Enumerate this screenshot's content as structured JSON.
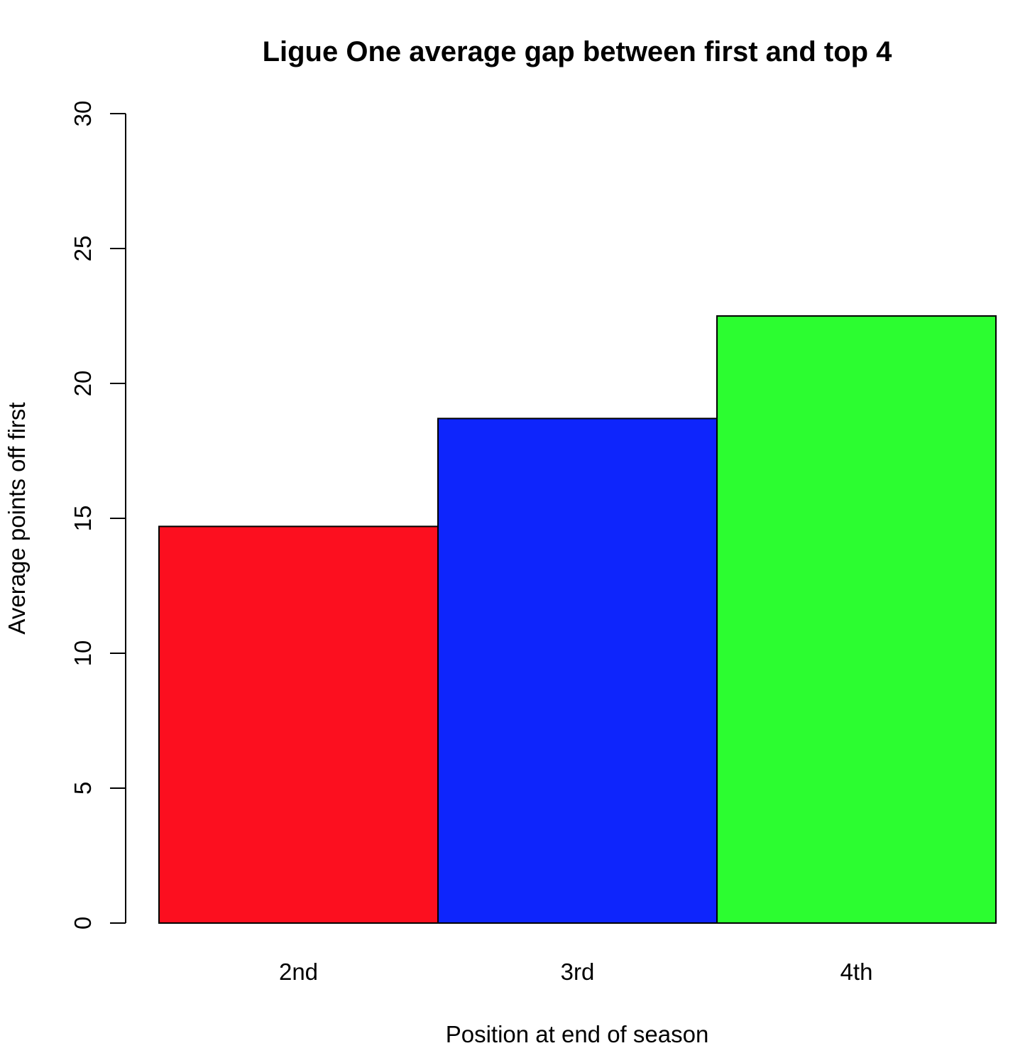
{
  "chart_data": {
    "type": "bar",
    "title": "Ligue One average gap between first and top 4",
    "xlabel": "Position at end of season",
    "ylabel": "Average points off first",
    "categories": [
      "2nd",
      "3rd",
      "4th"
    ],
    "values": [
      14.7,
      18.7,
      22.5
    ],
    "colors": [
      "#fc0f1f",
      "#0e25fc",
      "#2cfd30"
    ],
    "ylim": [
      0,
      30
    ],
    "yticks": [
      "0",
      "5",
      "10",
      "15",
      "20",
      "25",
      "30"
    ],
    "grid": false,
    "legend": "none"
  }
}
